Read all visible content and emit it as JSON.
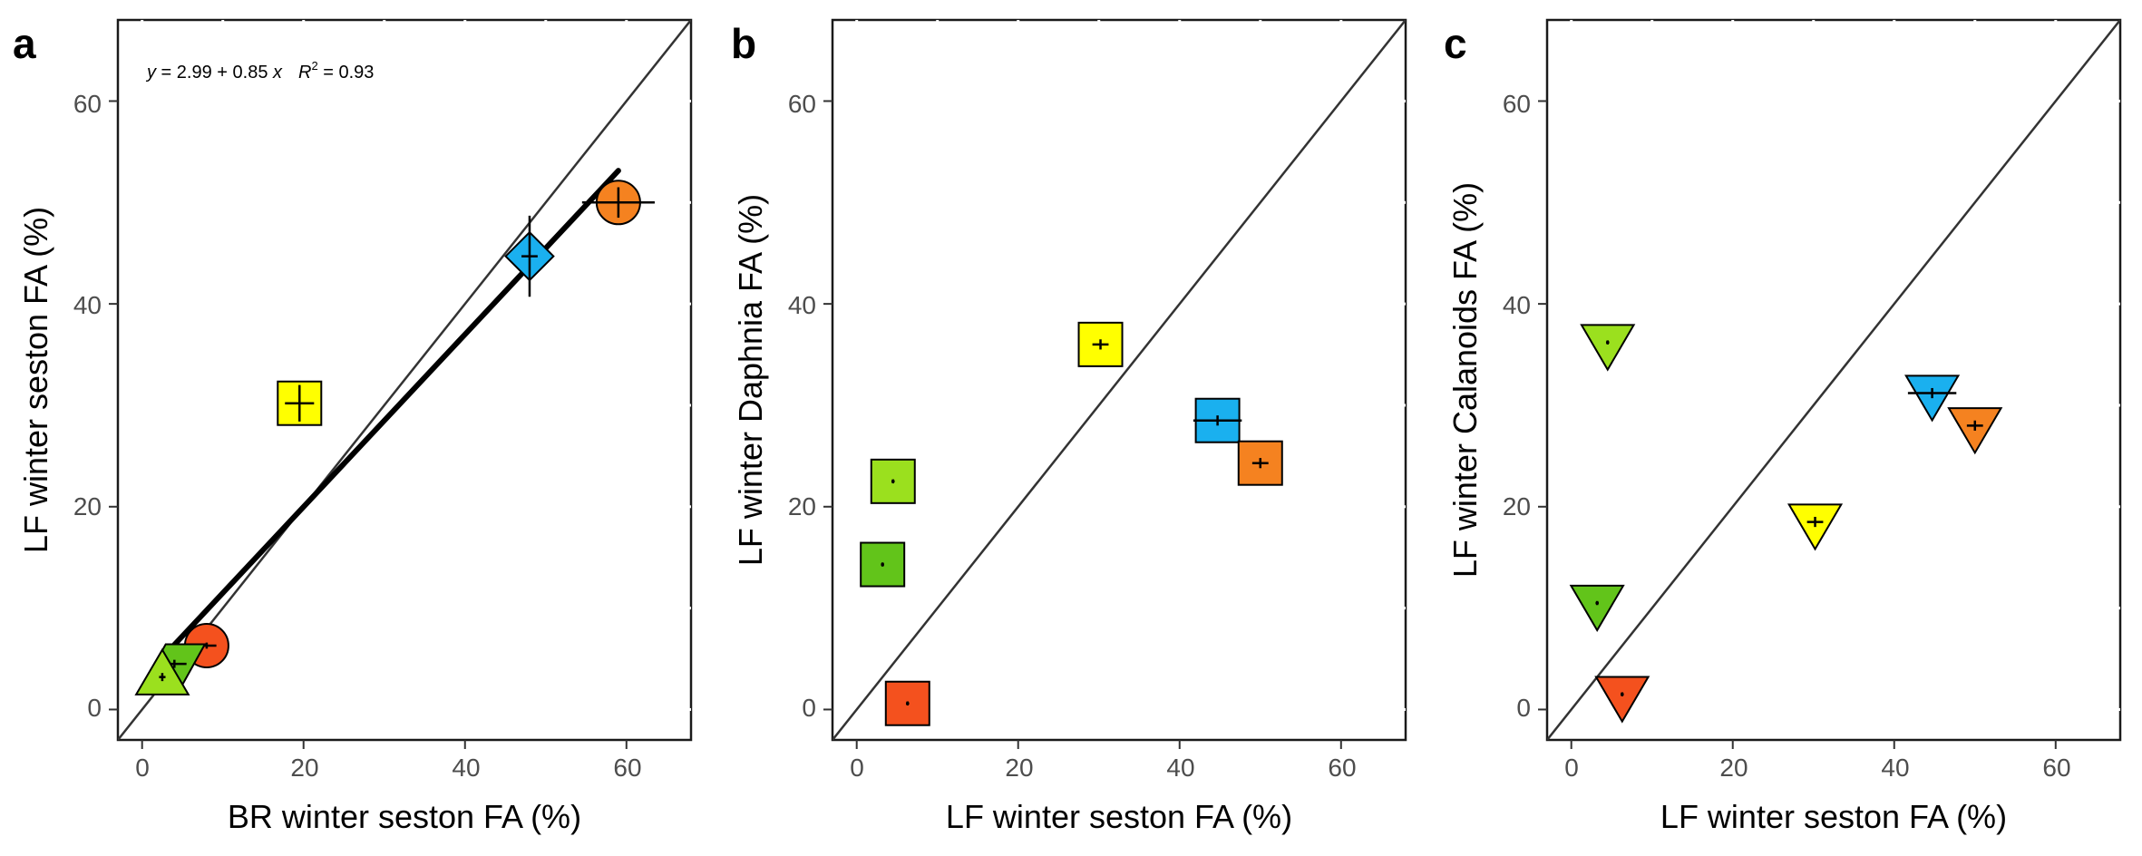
{
  "colors": {
    "red": "#f4511e",
    "orange": "#f58220",
    "yellow": "#ffff00",
    "light_green": "#9be01e",
    "green": "#62c41a",
    "blue": "#1ab0ef"
  },
  "chart_data": [
    {
      "type": "scatter",
      "panel": "a",
      "xlabel": "BR winter seston FA (%)",
      "ylabel": "LF winter seston FA (%)",
      "xlim": [
        -3,
        68
      ],
      "ylim": [
        -3,
        68
      ],
      "x_ticks": [
        "0",
        "20",
        "40",
        "60"
      ],
      "y_ticks": [
        "0",
        "20",
        "40",
        "60"
      ],
      "marker": "circle",
      "one_to_one_line": true,
      "annotation": {
        "lhs": "y",
        "eq": " = 2.99 + 0.85 ",
        "x": "x",
        "r": "R",
        "exp": "2",
        "tail": " = 0.93"
      },
      "regression": {
        "intercept": 2.99,
        "slope": 0.85,
        "x_range": [
          2,
          59
        ]
      },
      "points": [
        {
          "x": 59,
          "y": 50,
          "xerr": 4.5,
          "yerr": 1.5,
          "shape": "circle",
          "color": "#f58220"
        },
        {
          "x": 48,
          "y": 44.7,
          "xerr": 1,
          "yerr": 4,
          "shape": "diamond",
          "color": "#1ab0ef"
        },
        {
          "x": 19.5,
          "y": 30.2,
          "xerr": 1.8,
          "yerr": 1.8,
          "shape": "square",
          "color": "#ffff00"
        },
        {
          "x": 8,
          "y": 6.3,
          "xerr": 1.2,
          "yerr": 0.3,
          "shape": "circle",
          "color": "#f4511e"
        },
        {
          "x": 4,
          "y": 4.5,
          "xerr": 1.5,
          "yerr": 0.4,
          "shape": "parallelogram",
          "color": "#62c41a"
        },
        {
          "x": 2.5,
          "y": 3.2,
          "xerr": 0.4,
          "yerr": 0.4,
          "shape": "triangle-up",
          "color": "#9be01e"
        }
      ]
    },
    {
      "type": "scatter",
      "panel": "b",
      "xlabel": "LF winter seston FA (%)",
      "ylabel": "LF winter Daphnia FA (%)",
      "xlim": [
        -3,
        68
      ],
      "ylim": [
        -3,
        68
      ],
      "x_ticks": [
        "0",
        "20",
        "40",
        "60"
      ],
      "y_ticks": [
        "0",
        "20",
        "40",
        "60"
      ],
      "marker": "square",
      "one_to_one_line": true,
      "points": [
        {
          "x": 30.2,
          "y": 36,
          "xerr": 1,
          "yerr": 0.5,
          "shape": "square",
          "color": "#ffff00"
        },
        {
          "x": 44.7,
          "y": 28.5,
          "xerr": 3,
          "yerr": 0.5,
          "shape": "square",
          "color": "#1ab0ef"
        },
        {
          "x": 50,
          "y": 24.3,
          "xerr": 1,
          "yerr": 0.5,
          "shape": "square",
          "color": "#f58220"
        },
        {
          "x": 4.5,
          "y": 22.5,
          "xerr": 0.2,
          "yerr": 0.2,
          "shape": "square",
          "color": "#9be01e"
        },
        {
          "x": 3.2,
          "y": 14.3,
          "xerr": 0.2,
          "yerr": 0.2,
          "shape": "square",
          "color": "#62c41a"
        },
        {
          "x": 6.3,
          "y": 0.6,
          "xerr": 0.2,
          "yerr": 0.2,
          "shape": "square",
          "color": "#f4511e"
        }
      ]
    },
    {
      "type": "scatter",
      "panel": "c",
      "xlabel": "LF winter seston FA (%)",
      "ylabel": "LF winter Calanoids FA (%)",
      "xlim": [
        -3,
        68
      ],
      "ylim": [
        -3,
        68
      ],
      "x_ticks": [
        "0",
        "20",
        "40",
        "60"
      ],
      "y_ticks": [
        "0",
        "20",
        "40",
        "60"
      ],
      "marker": "triangle-down",
      "one_to_one_line": true,
      "points": [
        {
          "x": 4.5,
          "y": 36.2,
          "xerr": 0.2,
          "yerr": 0.2,
          "shape": "triangle-down",
          "color": "#9be01e"
        },
        {
          "x": 44.7,
          "y": 31.2,
          "xerr": 3,
          "yerr": 0.5,
          "shape": "triangle-down",
          "color": "#1ab0ef"
        },
        {
          "x": 50,
          "y": 28,
          "xerr": 1,
          "yerr": 0.5,
          "shape": "triangle-down",
          "color": "#f58220"
        },
        {
          "x": 30.2,
          "y": 18.5,
          "xerr": 1,
          "yerr": 0.5,
          "shape": "triangle-down",
          "color": "#ffff00"
        },
        {
          "x": 3.2,
          "y": 10.5,
          "xerr": 0.2,
          "yerr": 0.2,
          "shape": "triangle-down",
          "color": "#62c41a"
        },
        {
          "x": 6.3,
          "y": 1.5,
          "xerr": 0.2,
          "yerr": 0.2,
          "shape": "triangle-down",
          "color": "#f4511e"
        }
      ]
    }
  ]
}
